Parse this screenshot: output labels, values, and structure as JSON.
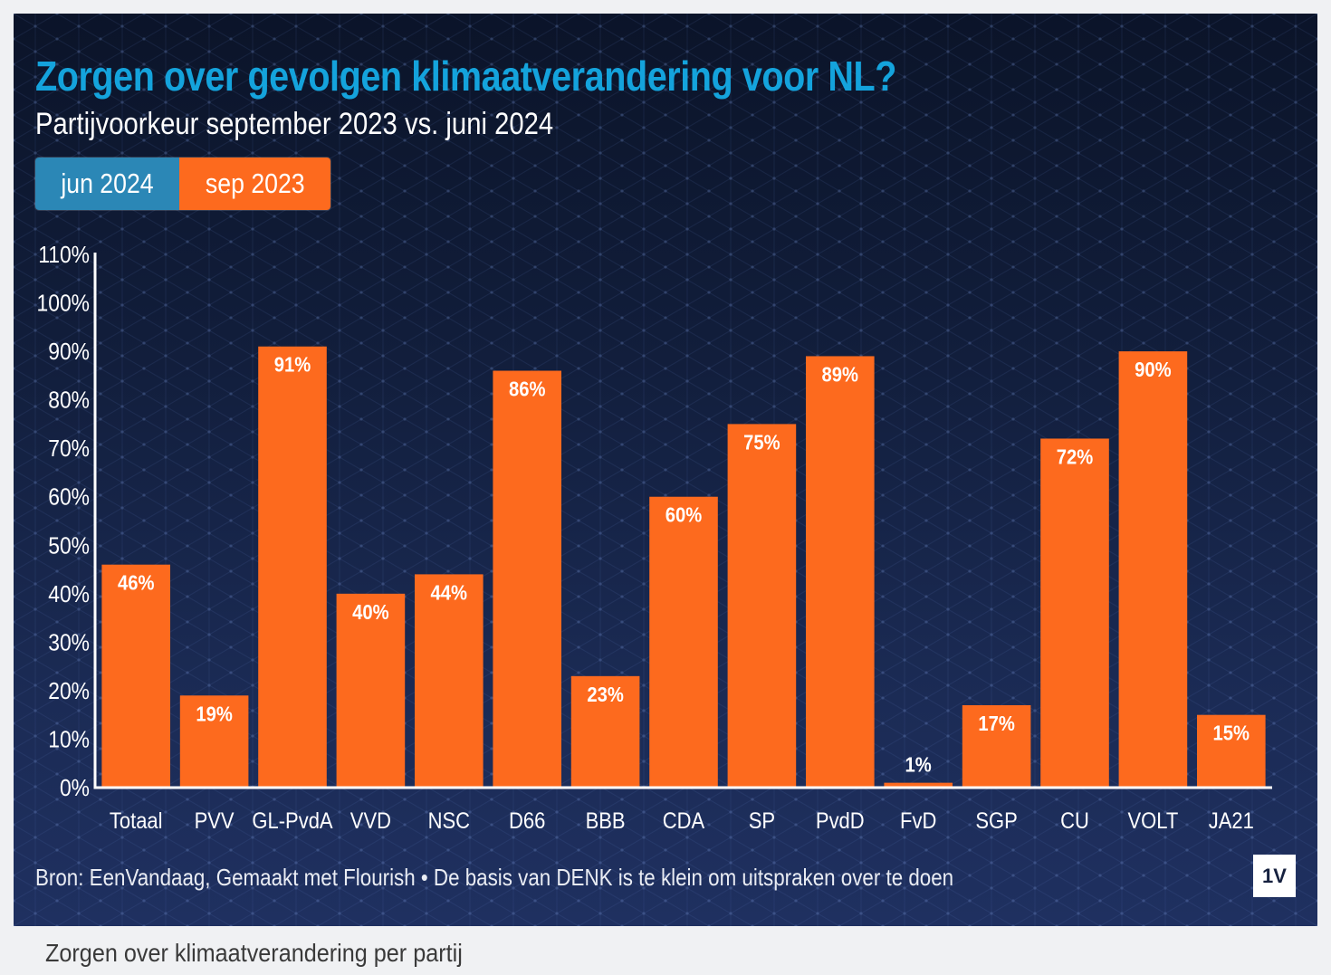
{
  "header": {
    "title": "Zorgen over gevolgen klimaatverandering voor NL?",
    "subtitle": "Partijvoorkeur september 2023 vs. juni 2024"
  },
  "legend": {
    "buttons": [
      {
        "label": "jun 2024",
        "color": "#2b87b6",
        "active": false
      },
      {
        "label": "sep 2023",
        "color": "#fd6a1e",
        "active": true
      }
    ]
  },
  "footer": {
    "source": "Bron: EenVandaag, Gemaakt met Flourish • De basis van DENK is te klein om uitspraken over te doen",
    "logo": "1V"
  },
  "caption": "Zorgen over klimaatverandering per partij",
  "colors": {
    "title": "#14a3dc",
    "bar": "#fd6a1e",
    "axis": "#ffffff",
    "background_top": "#0b1429",
    "background_bottom": "#1f3060"
  },
  "chart_data": {
    "type": "bar",
    "title": "Zorgen over gevolgen klimaatverandering voor NL?",
    "subtitle": "Partijvoorkeur september 2023 vs. juni 2024",
    "xlabel": "",
    "ylabel": "",
    "categories": [
      "Totaal",
      "PVV",
      "GL-PvdA",
      "VVD",
      "NSC",
      "D66",
      "BBB",
      "CDA",
      "SP",
      "PvdD",
      "FvD",
      "SGP",
      "CU",
      "VOLT",
      "JA21"
    ],
    "series": [
      {
        "name": "sep 2023",
        "color": "#fd6a1e",
        "values": [
          46,
          19,
          91,
          40,
          44,
          86,
          23,
          60,
          75,
          89,
          1,
          17,
          72,
          90,
          15
        ]
      }
    ],
    "value_labels": [
      "46%",
      "19%",
      "91%",
      "40%",
      "44%",
      "86%",
      "23%",
      "60%",
      "75%",
      "89%",
      "1%",
      "17%",
      "72%",
      "90%",
      "15%"
    ],
    "yticks": [
      0,
      10,
      20,
      30,
      40,
      50,
      60,
      70,
      80,
      90,
      100,
      110
    ],
    "ytick_labels": [
      "0%",
      "10%",
      "20%",
      "30%",
      "40%",
      "50%",
      "60%",
      "70%",
      "80%",
      "90%",
      "100%",
      "110%"
    ],
    "ylim": [
      0,
      110
    ],
    "grid": false,
    "legend": "top-left"
  }
}
